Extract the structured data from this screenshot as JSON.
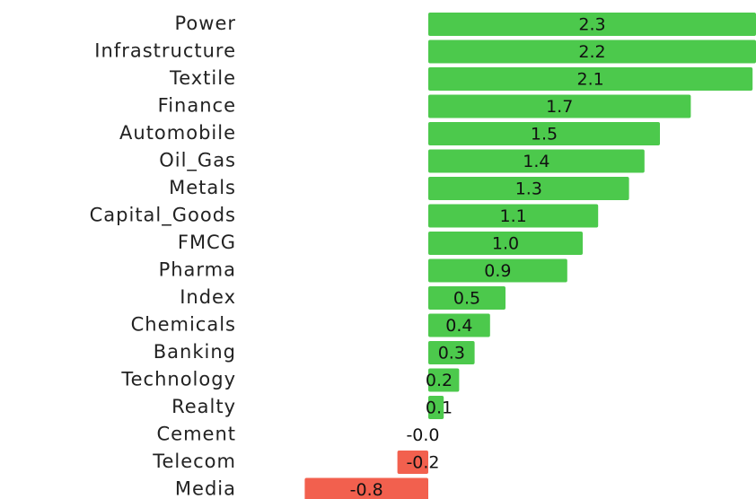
{
  "chart_data": {
    "type": "barh",
    "categories": [
      "Power",
      "Infrastructure",
      "Textile",
      "Finance",
      "Automobile",
      "Oil_Gas",
      "Metals",
      "Capital_Goods",
      "FMCG",
      "Pharma",
      "Index",
      "Chemicals",
      "Banking",
      "Technology",
      "Realty",
      "Cement",
      "Telecom",
      "Media"
    ],
    "values": [
      2.3,
      2.2,
      2.1,
      1.7,
      1.5,
      1.4,
      1.3,
      1.1,
      1.0,
      0.9,
      0.5,
      0.4,
      0.3,
      0.2,
      0.1,
      -0.0,
      -0.2,
      -0.8
    ],
    "value_labels": [
      "2.3",
      "2.2",
      "2.1",
      "1.7",
      "1.5",
      "1.4",
      "1.3",
      "1.1",
      "1.0",
      "0.9",
      "0.5",
      "0.4",
      "0.3",
      "0.2",
      "0.1",
      "-0.0",
      "-0.2",
      "-0.8"
    ],
    "positive_color": "#4cc94c",
    "negative_color": "#f2604e"
  }
}
